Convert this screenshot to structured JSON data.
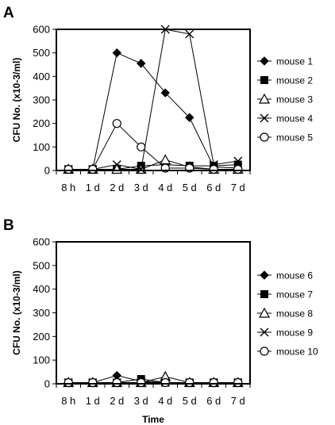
{
  "chart_data": [
    {
      "panel": "A",
      "type": "line",
      "ylabel": "CFU No. (x10-3/ml)",
      "xlabel": "",
      "categories": [
        "8 h",
        "1 d",
        "2 d",
        "3 d",
        "4 d",
        "5 d",
        "6 d",
        "7 d"
      ],
      "ylim": [
        0,
        600
      ],
      "yticks": [
        0,
        100,
        200,
        300,
        400,
        500,
        600
      ],
      "legend_position": "right",
      "series": [
        {
          "name": "mouse 1",
          "marker": "diamond-filled",
          "values": [
            5,
            5,
            500,
            455,
            330,
            225,
            15,
            10
          ]
        },
        {
          "name": "mouse 2",
          "marker": "square-filled",
          "values": [
            5,
            5,
            5,
            20,
            25,
            20,
            20,
            25
          ]
        },
        {
          "name": "mouse 3",
          "marker": "triangle-open",
          "values": [
            5,
            5,
            5,
            5,
            45,
            15,
            5,
            5
          ]
        },
        {
          "name": "mouse 4",
          "marker": "x",
          "values": [
            5,
            5,
            25,
            5,
            600,
            580,
            25,
            40
          ]
        },
        {
          "name": "mouse 5",
          "marker": "circle-open",
          "values": [
            5,
            5,
            200,
            100,
            10,
            10,
            5,
            5
          ]
        }
      ]
    },
    {
      "panel": "B",
      "type": "line",
      "ylabel": "CFU No. (x10-3/ml)",
      "xlabel": "Time",
      "categories": [
        "8 h",
        "1 d",
        "2 d",
        "3 d",
        "4 d",
        "5 d",
        "6 d",
        "7 d"
      ],
      "ylim": [
        0,
        600
      ],
      "yticks": [
        0,
        100,
        200,
        300,
        400,
        500,
        600
      ],
      "legend_position": "right",
      "series": [
        {
          "name": "mouse 6",
          "marker": "diamond-filled",
          "values": [
            5,
            5,
            35,
            10,
            5,
            5,
            5,
            5
          ]
        },
        {
          "name": "mouse 7",
          "marker": "square-filled",
          "values": [
            5,
            5,
            5,
            20,
            5,
            5,
            5,
            5
          ]
        },
        {
          "name": "mouse 8",
          "marker": "triangle-open",
          "values": [
            5,
            5,
            5,
            5,
            30,
            5,
            5,
            5
          ]
        },
        {
          "name": "mouse 9",
          "marker": "x",
          "values": [
            5,
            5,
            5,
            5,
            5,
            5,
            5,
            5
          ]
        },
        {
          "name": "mouse 10",
          "marker": "circle-open",
          "values": [
            5,
            5,
            5,
            5,
            5,
            5,
            5,
            5
          ]
        }
      ]
    }
  ]
}
